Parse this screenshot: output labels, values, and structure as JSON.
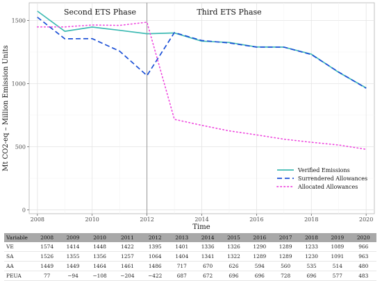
{
  "chart_data": {
    "type": "line",
    "x": [
      2008,
      2009,
      2010,
      2011,
      2012,
      2013,
      2014,
      2015,
      2016,
      2017,
      2018,
      2019,
      2020
    ],
    "series": [
      {
        "name": "Verified Emissions",
        "color": "#3dbab3",
        "style": "solid",
        "values": [
          1574,
          1414,
          1448,
          1422,
          1395,
          1401,
          1336,
          1326,
          1290,
          1289,
          1233,
          1089,
          966
        ]
      },
      {
        "name": "Surrendered Allowances",
        "color": "#1a4fd6",
        "style": "dashed",
        "values": [
          1526,
          1355,
          1356,
          1257,
          1064,
          1404,
          1341,
          1322,
          1289,
          1289,
          1230,
          1091,
          963
        ]
      },
      {
        "name": "Allocated Allowances",
        "color": "#ee44dd",
        "style": "dotted",
        "values": [
          1449,
          1449,
          1464,
          1461,
          1486,
          717,
          670,
          626,
          594,
          560,
          535,
          514,
          480
        ]
      }
    ],
    "xlabel": "Time",
    "ylabel": "Mt CO2-eq – Million Emission Units",
    "xlim": [
      2007.7,
      2020.3
    ],
    "ylim": [
      -30,
      1640
    ],
    "xticks": [
      2008,
      2010,
      2012,
      2014,
      2016,
      2018,
      2020
    ],
    "yticks": [
      0,
      500,
      1000,
      1500
    ],
    "vline_x": 2012,
    "annotations": [
      "Second ETS Phase",
      "Third ETS Phase"
    ],
    "grid": true,
    "legend_position": "bottom-right"
  },
  "table": {
    "header": [
      "Variable",
      "2008",
      "2009",
      "2010",
      "2011",
      "2012",
      "2013",
      "2014",
      "2015",
      "2016",
      "2017",
      "2018",
      "2019",
      "2020"
    ],
    "rows": [
      [
        "VE",
        "1574",
        "1414",
        "1448",
        "1422",
        "1395",
        "1401",
        "1336",
        "1326",
        "1290",
        "1289",
        "1233",
        "1089",
        "966"
      ],
      [
        "SA",
        "1526",
        "1355",
        "1356",
        "1257",
        "1064",
        "1404",
        "1341",
        "1322",
        "1289",
        "1289",
        "1230",
        "1091",
        "963"
      ],
      [
        "AA",
        "1449",
        "1449",
        "1464",
        "1461",
        "1486",
        "717",
        "670",
        "626",
        "594",
        "560",
        "535",
        "514",
        "480"
      ],
      [
        "PEUA",
        "77",
        "−94",
        "−108",
        "−204",
        "−422",
        "687",
        "672",
        "696",
        "696",
        "728",
        "696",
        "577",
        "483"
      ]
    ]
  }
}
